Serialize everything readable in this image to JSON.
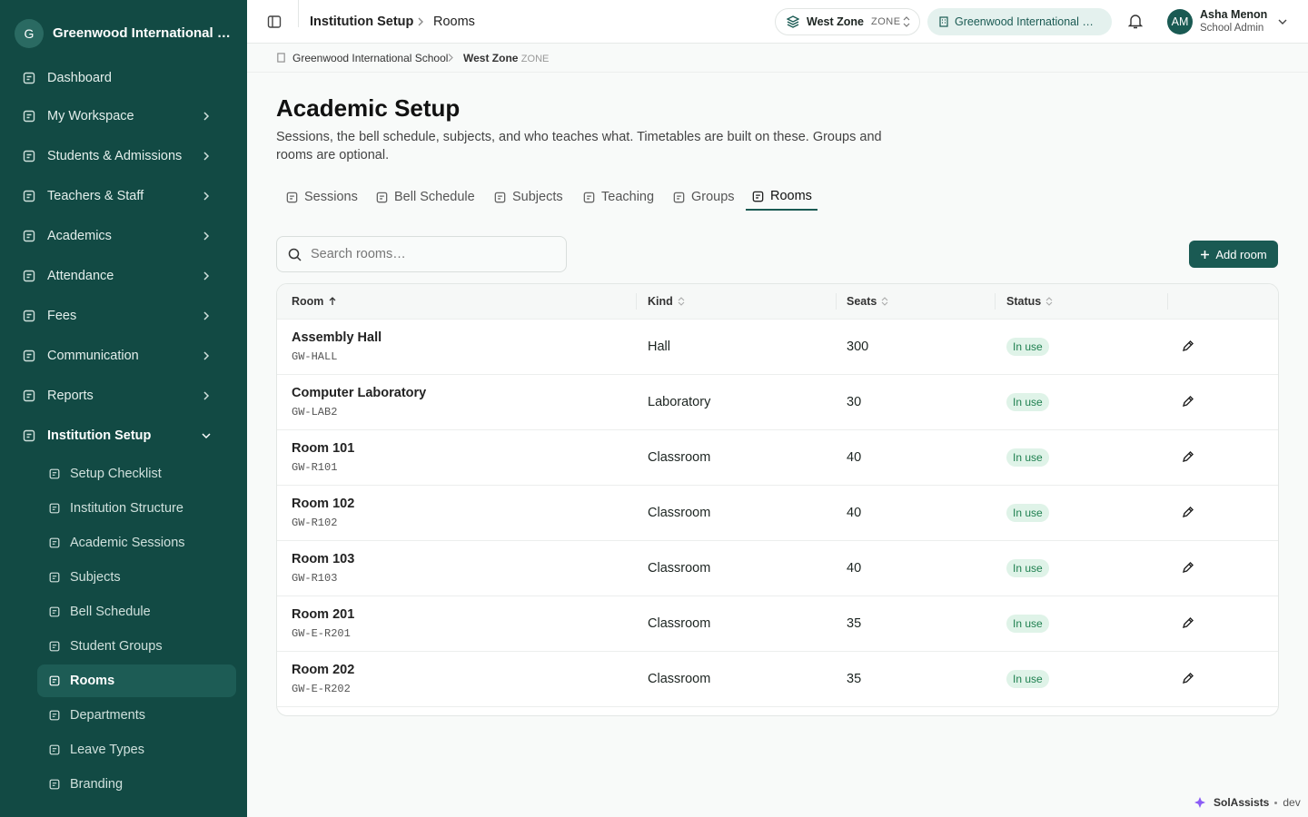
{
  "sidebar": {
    "logo": "G",
    "school": "Greenwood International School",
    "nav": [
      "Dashboard",
      "My Workspace",
      "Students & Admissions",
      "Teachers & Staff",
      "Academics",
      "Attendance",
      "Fees",
      "Communication",
      "Reports",
      "Institution Setup"
    ],
    "subnav": [
      "Setup Checklist",
      "Institution Structure",
      "Academic Sessions",
      "Subjects",
      "Bell Schedule",
      "Student Groups",
      "Rooms",
      "Departments",
      "Leave Types",
      "Branding"
    ]
  },
  "topbar": {
    "crumbs": [
      "Institution Setup",
      "Rooms"
    ],
    "zone": "West Zone",
    "zone_tag": "ZONE",
    "school": "Greenwood International School",
    "user_initials": "AM",
    "user_name": "Asha Menon",
    "user_role": "School Admin"
  },
  "breadcrumb": {
    "school": "Greenwood International School",
    "zone": "West Zone",
    "zone_tag": "ZONE"
  },
  "page": {
    "title": "Academic Setup",
    "description": "Sessions, the bell schedule, subjects, and who teaches what. Timetables are built on these. Groups and rooms are optional.",
    "tabs": [
      "Sessions",
      "Bell Schedule",
      "Subjects",
      "Teaching",
      "Groups",
      "Rooms"
    ],
    "search_placeholder": "Search rooms…",
    "add_button": "Add room"
  },
  "table": {
    "columns": [
      "Room",
      "Kind",
      "Seats",
      "Status"
    ],
    "rows": [
      {
        "name": "Assembly Hall",
        "code": "GW-HALL",
        "kind": "Hall",
        "seats": 300,
        "status": "In use"
      },
      {
        "name": "Computer Laboratory",
        "code": "GW-LAB2",
        "kind": "Laboratory",
        "seats": 30,
        "status": "In use"
      },
      {
        "name": "Room 101",
        "code": "GW-R101",
        "kind": "Classroom",
        "seats": 40,
        "status": "In use"
      },
      {
        "name": "Room 102",
        "code": "GW-R102",
        "kind": "Classroom",
        "seats": 40,
        "status": "In use"
      },
      {
        "name": "Room 103",
        "code": "GW-R103",
        "kind": "Classroom",
        "seats": 40,
        "status": "In use"
      },
      {
        "name": "Room 201",
        "code": "GW-E-R201",
        "kind": "Classroom",
        "seats": 35,
        "status": "In use"
      },
      {
        "name": "Room 202",
        "code": "GW-E-R202",
        "kind": "Classroom",
        "seats": 35,
        "status": "In use"
      }
    ]
  },
  "footer": {
    "brand": "SolAssists",
    "env": "dev"
  }
}
